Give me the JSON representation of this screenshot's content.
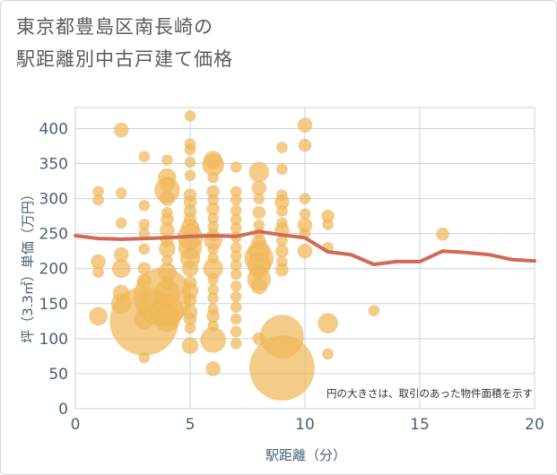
{
  "title_line1": "東京都豊島区南長崎の",
  "title_line2": "駅距離別中古戸建て価格",
  "chart_data": {
    "type": "scatter",
    "xlabel": "駅距離（分）",
    "ylabel": "坪（3.3㎡）単価（万円）",
    "xlim": [
      0,
      20
    ],
    "ylim": [
      0,
      430
    ],
    "xticks": [
      0,
      5,
      10,
      15,
      20
    ],
    "yticks": [
      0,
      50,
      100,
      150,
      200,
      250,
      300,
      350,
      400
    ],
    "grid": true,
    "note": "円の大きさは、取引のあった物件面積を示す",
    "bubble_color": "#f0b95a",
    "line_color": "#d06a55",
    "bubbles": [
      {
        "x": 1,
        "y": 310,
        "s": 6
      },
      {
        "x": 1,
        "y": 298,
        "s": 6
      },
      {
        "x": 1,
        "y": 210,
        "s": 8
      },
      {
        "x": 1,
        "y": 195,
        "s": 6
      },
      {
        "x": 1,
        "y": 132,
        "s": 10
      },
      {
        "x": 2,
        "y": 308,
        "s": 6
      },
      {
        "x": 2,
        "y": 265,
        "s": 6
      },
      {
        "x": 2,
        "y": 220,
        "s": 8
      },
      {
        "x": 2,
        "y": 200,
        "s": 10
      },
      {
        "x": 2,
        "y": 165,
        "s": 9
      },
      {
        "x": 2,
        "y": 150,
        "s": 11
      },
      {
        "x": 2,
        "y": 398,
        "s": 8
      },
      {
        "x": 3,
        "y": 360,
        "s": 6
      },
      {
        "x": 3,
        "y": 290,
        "s": 6
      },
      {
        "x": 3,
        "y": 263,
        "s": 6
      },
      {
        "x": 3,
        "y": 250,
        "s": 6
      },
      {
        "x": 3,
        "y": 228,
        "s": 6
      },
      {
        "x": 3,
        "y": 200,
        "s": 7
      },
      {
        "x": 3,
        "y": 182,
        "s": 8
      },
      {
        "x": 3,
        "y": 160,
        "s": 7
      },
      {
        "x": 3,
        "y": 145,
        "s": 6
      },
      {
        "x": 3,
        "y": 128,
        "s": 11
      },
      {
        "x": 3,
        "y": 73,
        "s": 6
      },
      {
        "x": 3,
        "y": 125,
        "s": 38
      },
      {
        "x": 3.8,
        "y": 160,
        "s": 32
      },
      {
        "x": 4,
        "y": 140,
        "s": 18
      },
      {
        "x": 4,
        "y": 165,
        "s": 14
      },
      {
        "x": 4,
        "y": 355,
        "s": 6
      },
      {
        "x": 4,
        "y": 330,
        "s": 10
      },
      {
        "x": 4,
        "y": 320,
        "s": 8
      },
      {
        "x": 4,
        "y": 312,
        "s": 14
      },
      {
        "x": 4,
        "y": 300,
        "s": 8
      },
      {
        "x": 4,
        "y": 280,
        "s": 6
      },
      {
        "x": 4,
        "y": 270,
        "s": 7
      },
      {
        "x": 4,
        "y": 255,
        "s": 8
      },
      {
        "x": 4,
        "y": 240,
        "s": 7
      },
      {
        "x": 4,
        "y": 228,
        "s": 9
      },
      {
        "x": 4,
        "y": 212,
        "s": 6
      },
      {
        "x": 4,
        "y": 195,
        "s": 10
      },
      {
        "x": 4,
        "y": 180,
        "s": 7
      },
      {
        "x": 4,
        "y": 128,
        "s": 14
      },
      {
        "x": 5,
        "y": 418,
        "s": 6
      },
      {
        "x": 5,
        "y": 378,
        "s": 6
      },
      {
        "x": 5,
        "y": 370,
        "s": 6
      },
      {
        "x": 5,
        "y": 352,
        "s": 6
      },
      {
        "x": 5,
        "y": 333,
        "s": 6
      },
      {
        "x": 5,
        "y": 305,
        "s": 7
      },
      {
        "x": 5,
        "y": 295,
        "s": 7
      },
      {
        "x": 5,
        "y": 282,
        "s": 7
      },
      {
        "x": 5,
        "y": 270,
        "s": 7
      },
      {
        "x": 5,
        "y": 258,
        "s": 10
      },
      {
        "x": 5,
        "y": 245,
        "s": 14
      },
      {
        "x": 5,
        "y": 230,
        "s": 13
      },
      {
        "x": 5,
        "y": 215,
        "s": 11
      },
      {
        "x": 5,
        "y": 200,
        "s": 9
      },
      {
        "x": 5,
        "y": 180,
        "s": 7
      },
      {
        "x": 5,
        "y": 168,
        "s": 9
      },
      {
        "x": 5,
        "y": 155,
        "s": 7
      },
      {
        "x": 5,
        "y": 138,
        "s": 8
      },
      {
        "x": 5,
        "y": 128,
        "s": 7
      },
      {
        "x": 5,
        "y": 115,
        "s": 6
      },
      {
        "x": 5,
        "y": 90,
        "s": 9
      },
      {
        "x": 6,
        "y": 355,
        "s": 10
      },
      {
        "x": 6,
        "y": 348,
        "s": 12
      },
      {
        "x": 6,
        "y": 330,
        "s": 6
      },
      {
        "x": 6,
        "y": 310,
        "s": 7
      },
      {
        "x": 6,
        "y": 298,
        "s": 6
      },
      {
        "x": 6,
        "y": 285,
        "s": 7
      },
      {
        "x": 6,
        "y": 272,
        "s": 6
      },
      {
        "x": 6,
        "y": 260,
        "s": 6
      },
      {
        "x": 6,
        "y": 248,
        "s": 7
      },
      {
        "x": 6,
        "y": 240,
        "s": 10
      },
      {
        "x": 6,
        "y": 228,
        "s": 6
      },
      {
        "x": 6,
        "y": 215,
        "s": 6
      },
      {
        "x": 6,
        "y": 200,
        "s": 11
      },
      {
        "x": 6,
        "y": 185,
        "s": 6
      },
      {
        "x": 6,
        "y": 170,
        "s": 6
      },
      {
        "x": 6,
        "y": 158,
        "s": 6
      },
      {
        "x": 6,
        "y": 142,
        "s": 6
      },
      {
        "x": 6,
        "y": 132,
        "s": 7
      },
      {
        "x": 6,
        "y": 118,
        "s": 6
      },
      {
        "x": 6,
        "y": 98,
        "s": 14
      },
      {
        "x": 6,
        "y": 57,
        "s": 8
      },
      {
        "x": 7,
        "y": 345,
        "s": 6
      },
      {
        "x": 7,
        "y": 310,
        "s": 6
      },
      {
        "x": 7,
        "y": 298,
        "s": 6
      },
      {
        "x": 7,
        "y": 283,
        "s": 6
      },
      {
        "x": 7,
        "y": 270,
        "s": 6
      },
      {
        "x": 7,
        "y": 258,
        "s": 6
      },
      {
        "x": 7,
        "y": 245,
        "s": 6
      },
      {
        "x": 7,
        "y": 230,
        "s": 6
      },
      {
        "x": 7,
        "y": 218,
        "s": 6
      },
      {
        "x": 7,
        "y": 205,
        "s": 6
      },
      {
        "x": 7,
        "y": 192,
        "s": 6
      },
      {
        "x": 7,
        "y": 175,
        "s": 6
      },
      {
        "x": 7,
        "y": 160,
        "s": 6
      },
      {
        "x": 7,
        "y": 145,
        "s": 6
      },
      {
        "x": 7,
        "y": 128,
        "s": 6
      },
      {
        "x": 7,
        "y": 110,
        "s": 6
      },
      {
        "x": 7,
        "y": 93,
        "s": 6
      },
      {
        "x": 8,
        "y": 338,
        "s": 11
      },
      {
        "x": 8,
        "y": 315,
        "s": 8
      },
      {
        "x": 8,
        "y": 300,
        "s": 6
      },
      {
        "x": 8,
        "y": 280,
        "s": 7
      },
      {
        "x": 8,
        "y": 262,
        "s": 6
      },
      {
        "x": 8,
        "y": 250,
        "s": 6
      },
      {
        "x": 8,
        "y": 238,
        "s": 8
      },
      {
        "x": 8,
        "y": 225,
        "s": 12
      },
      {
        "x": 8,
        "y": 215,
        "s": 16
      },
      {
        "x": 8,
        "y": 205,
        "s": 13
      },
      {
        "x": 8,
        "y": 195,
        "s": 8
      },
      {
        "x": 8,
        "y": 185,
        "s": 13
      },
      {
        "x": 8,
        "y": 175,
        "s": 9
      },
      {
        "x": 8,
        "y": 100,
        "s": 7
      },
      {
        "x": 9,
        "y": 373,
        "s": 6
      },
      {
        "x": 9,
        "y": 342,
        "s": 6
      },
      {
        "x": 9,
        "y": 305,
        "s": 6
      },
      {
        "x": 9,
        "y": 295,
        "s": 8
      },
      {
        "x": 9,
        "y": 282,
        "s": 6
      },
      {
        "x": 9,
        "y": 265,
        "s": 6
      },
      {
        "x": 9,
        "y": 255,
        "s": 8
      },
      {
        "x": 9,
        "y": 240,
        "s": 6
      },
      {
        "x": 9,
        "y": 225,
        "s": 7
      },
      {
        "x": 9,
        "y": 210,
        "s": 6
      },
      {
        "x": 9,
        "y": 198,
        "s": 7
      },
      {
        "x": 9,
        "y": 103,
        "s": 24
      },
      {
        "x": 9,
        "y": 58,
        "s": 36
      },
      {
        "x": 10,
        "y": 405,
        "s": 8
      },
      {
        "x": 10,
        "y": 376,
        "s": 7
      },
      {
        "x": 10,
        "y": 300,
        "s": 6
      },
      {
        "x": 10,
        "y": 278,
        "s": 6
      },
      {
        "x": 10,
        "y": 262,
        "s": 8
      },
      {
        "x": 10,
        "y": 250,
        "s": 6
      },
      {
        "x": 10,
        "y": 225,
        "s": 8
      },
      {
        "x": 11,
        "y": 275,
        "s": 7
      },
      {
        "x": 11,
        "y": 263,
        "s": 6
      },
      {
        "x": 11,
        "y": 230,
        "s": 6
      },
      {
        "x": 11,
        "y": 122,
        "s": 11
      },
      {
        "x": 11,
        "y": 78,
        "s": 6
      },
      {
        "x": 13,
        "y": 140,
        "s": 6
      },
      {
        "x": 16,
        "y": 249,
        "s": 7
      }
    ],
    "series": [
      {
        "values_x": [
          0,
          1,
          2,
          3,
          4,
          5,
          6,
          7,
          8,
          9,
          10,
          11,
          12,
          13,
          14,
          15,
          16,
          17,
          18,
          19,
          20
        ],
        "values_y": [
          247,
          243,
          242,
          243,
          244,
          246,
          247,
          246,
          253,
          248,
          244,
          224,
          220,
          206,
          210,
          210,
          225,
          223,
          220,
          213,
          211
        ]
      }
    ]
  }
}
